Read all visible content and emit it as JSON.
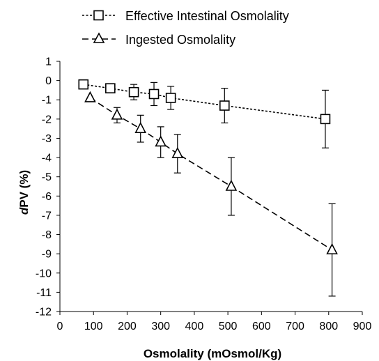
{
  "chart_data": {
    "type": "scatter",
    "xlabel": "Osmolality (mOsmol/Kg)",
    "ylabel_italic": "d",
    "ylabel_rest": "PV (%)",
    "xlim": [
      0,
      900
    ],
    "ylim": [
      -12,
      1
    ],
    "x_ticks": [
      "0",
      "100",
      "200",
      "300",
      "400",
      "500",
      "600",
      "700",
      "800",
      "900"
    ],
    "y_ticks": [
      "1",
      "0",
      "-1",
      "-2",
      "-3",
      "-4",
      "-5",
      "-6",
      "-7",
      "-8",
      "-9",
      "-10",
      "-11",
      "-12"
    ],
    "legend_position": "top-left",
    "grid": false,
    "series": [
      {
        "name": "Effective Intestinal Osmolality",
        "marker": "square",
        "line": "short-dash",
        "points": [
          {
            "x": 70,
            "y": -0.2,
            "err": 0
          },
          {
            "x": 150,
            "y": -0.4,
            "err": 0.2
          },
          {
            "x": 220,
            "y": -0.6,
            "err": 0.4
          },
          {
            "x": 280,
            "y": -0.7,
            "err": 0.6
          },
          {
            "x": 330,
            "y": -0.9,
            "err": 0.6
          },
          {
            "x": 490,
            "y": -1.3,
            "err": 0.9
          },
          {
            "x": 790,
            "y": -2.0,
            "err": 1.5
          }
        ]
      },
      {
        "name": "Ingested Osmolality",
        "marker": "triangle",
        "line": "long-dash",
        "points": [
          {
            "x": 90,
            "y": -0.9,
            "err": 0
          },
          {
            "x": 170,
            "y": -1.8,
            "err": 0.4
          },
          {
            "x": 240,
            "y": -2.5,
            "err": 0.7
          },
          {
            "x": 300,
            "y": -3.2,
            "err": 0.8
          },
          {
            "x": 350,
            "y": -3.8,
            "err": 1.0
          },
          {
            "x": 510,
            "y": -5.5,
            "err": 1.5
          },
          {
            "x": 810,
            "y": -8.8,
            "err": 2.4
          }
        ]
      }
    ]
  }
}
